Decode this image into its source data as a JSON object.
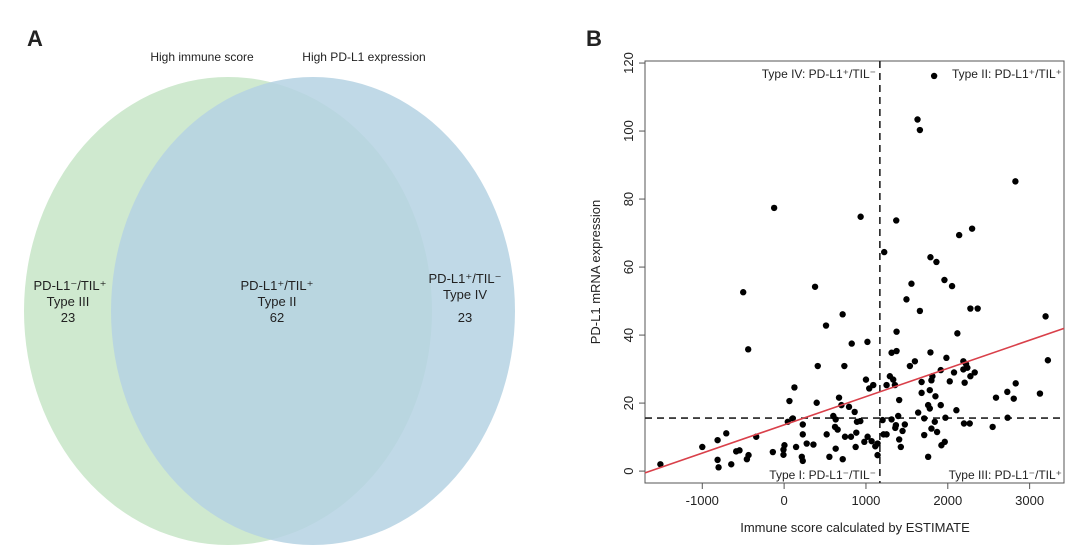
{
  "panels": {
    "a_label": "A",
    "b_label": "B"
  },
  "colors": {
    "set_a": "#cfe9cf",
    "set_b": "#b5d2e3",
    "points": "#000000",
    "fit_line": "#d9404a"
  },
  "chart_data": [
    {
      "type": "venn",
      "sets": [
        {
          "name": "High immune score"
        },
        {
          "name": "High PD-L1 expression"
        }
      ],
      "regions": [
        {
          "label": "PD-L1⁻/TIL⁺",
          "type": "Type III",
          "count": "23"
        },
        {
          "label": "PD-L1⁺/TIL⁺",
          "type": "Type II",
          "count": "62"
        },
        {
          "label": "PD-L1⁺/TIL⁻",
          "type": "Type IV",
          "count": "23"
        }
      ]
    },
    {
      "type": "scatter",
      "xlabel": "Immune score calculated by ESTIMATE",
      "ylabel": "PD-L1 mRNA expression",
      "xlim": [
        -1700,
        3420
      ],
      "ylim": [
        -3.5,
        120.6
      ],
      "xticks": [
        -1000,
        0,
        1000,
        2000,
        3000
      ],
      "yticks": [
        0,
        20,
        40,
        60,
        80,
        100,
        120
      ],
      "grid": false,
      "cutoffs": {
        "x": 1170,
        "y": 15.6
      },
      "fit_line": {
        "intercept": 13.6,
        "slope": 0.0083
      },
      "quadrant_labels": {
        "top_left": "Type IV: PD-L1⁺/TIL⁻",
        "top_right": "Type II: PD-L1⁺/TIL⁺",
        "bottom_left": "Type I: PD-L1⁻/TIL⁻",
        "bottom_right": "Type III: PD-L1⁻/TIL⁺"
      },
      "points": [
        [
          1833,
          116.2
        ],
        [
          1630,
          103.4
        ],
        [
          1659,
          100.3
        ],
        [
          2826,
          85.2
        ],
        [
          -122,
          77.4
        ],
        [
          935,
          74.8
        ],
        [
          1370,
          73.7
        ],
        [
          2297,
          71.3
        ],
        [
          2139,
          69.4
        ],
        [
          1223,
          64.4
        ],
        [
          1788,
          62.9
        ],
        [
          1861,
          61.5
        ],
        [
          1556,
          55.1
        ],
        [
          1959,
          56.2
        ],
        [
          2052,
          54.4
        ],
        [
          378,
          54.2
        ],
        [
          -500,
          52.6
        ],
        [
          1495,
          50.5
        ],
        [
          2276,
          47.8
        ],
        [
          2365,
          47.8
        ],
        [
          1659,
          47.1
        ],
        [
          3195,
          45.5
        ],
        [
          715,
          46.1
        ],
        [
          512,
          42.8
        ],
        [
          2117,
          40.5
        ],
        [
          1374,
          41.0
        ],
        [
          -439,
          35.8
        ],
        [
          826,
          37.5
        ],
        [
          1018,
          38.0
        ],
        [
          1788,
          34.9
        ],
        [
          1313,
          34.8
        ],
        [
          1374,
          35.3
        ],
        [
          1983,
          33.3
        ],
        [
          3223,
          32.6
        ],
        [
          1598,
          32.3
        ],
        [
          1537,
          30.9
        ],
        [
          411,
          30.9
        ],
        [
          736,
          30.9
        ],
        [
          2190,
          32.3
        ],
        [
          2223,
          31.5
        ],
        [
          2239,
          30.4
        ],
        [
          2190,
          29.9
        ],
        [
          1914,
          29.7
        ],
        [
          2076,
          29.0
        ],
        [
          2329,
          29.0
        ],
        [
          2276,
          27.9
        ],
        [
          1292,
          27.9
        ],
        [
          1812,
          27.9
        ],
        [
          1333,
          26.9
        ],
        [
          1000,
          26.9
        ],
        [
          1680,
          26.2
        ],
        [
          2024,
          26.4
        ],
        [
          1800,
          26.7
        ],
        [
          2206,
          26.0
        ],
        [
          2830,
          25.8
        ],
        [
          1040,
          24.3
        ],
        [
          1089,
          25.3
        ],
        [
          1354,
          25.3
        ],
        [
          1252,
          25.3
        ],
        [
          126,
          24.6
        ],
        [
          1780,
          23.8
        ],
        [
          2727,
          23.3
        ],
        [
          1680,
          23.0
        ],
        [
          3126,
          22.8
        ],
        [
          2589,
          21.6
        ],
        [
          2806,
          21.3
        ],
        [
          1849,
          22.0
        ],
        [
          1406,
          20.9
        ],
        [
          65,
          20.6
        ],
        [
          398,
          20.1
        ],
        [
          671,
          21.6
        ],
        [
          700,
          19.4
        ],
        [
          1914,
          19.4
        ],
        [
          793,
          18.9
        ],
        [
          1780,
          18.4
        ],
        [
          2105,
          17.9
        ],
        [
          862,
          17.4
        ],
        [
          1638,
          17.2
        ],
        [
          1760,
          19.4
        ],
        [
          601,
          16.2
        ],
        [
          2731,
          15.7
        ],
        [
          1971,
          15.7
        ],
        [
          1394,
          16.2
        ],
        [
          1712,
          15.5
        ],
        [
          106,
          15.5
        ],
        [
          630,
          15.2
        ],
        [
          1313,
          15.2
        ],
        [
          1203,
          15.0
        ],
        [
          45,
          14.5
        ],
        [
          890,
          14.5
        ],
        [
          931,
          14.7
        ],
        [
          1841,
          14.5
        ],
        [
          2198,
          14.0
        ],
        [
          2268,
          14.0
        ],
        [
          1475,
          13.7
        ],
        [
          1366,
          13.5
        ],
        [
          228,
          13.7
        ],
        [
          622,
          13.0
        ],
        [
          2548,
          13.0
        ],
        [
          1800,
          12.5
        ],
        [
          1358,
          12.7
        ],
        [
          1869,
          11.5
        ],
        [
          654,
          12.2
        ],
        [
          1447,
          11.8
        ],
        [
          882,
          11.3
        ],
        [
          520,
          10.8
        ],
        [
          1712,
          10.6
        ],
        [
          1252,
          10.8
        ],
        [
          -707,
          11.1
        ],
        [
          -341,
          10.1
        ],
        [
          228,
          10.8
        ],
        [
          744,
          10.1
        ],
        [
          817,
          10.1
        ],
        [
          1020,
          10.1
        ],
        [
          1215,
          10.8
        ],
        [
          -813,
          9.1
        ],
        [
          1069,
          8.8
        ],
        [
          1406,
          9.3
        ],
        [
          980,
          8.6
        ],
        [
          1963,
          8.6
        ],
        [
          276,
          8.1
        ],
        [
          358,
          7.8
        ],
        [
          1142,
          8.1
        ],
        [
          1922,
          7.6
        ],
        [
          146,
          7.1
        ],
        [
          1426,
          7.1
        ],
        [
          4,
          7.6
        ],
        [
          -8,
          6.3
        ],
        [
          -1000,
          7.1
        ],
        [
          874,
          7.1
        ],
        [
          630,
          6.6
        ],
        [
          1114,
          7.3
        ],
        [
          -586,
          5.8
        ],
        [
          -545,
          6.1
        ],
        [
          -138,
          5.6
        ],
        [
          -8,
          4.8
        ],
        [
          553,
          4.2
        ],
        [
          1142,
          4.7
        ],
        [
          1760,
          4.2
        ],
        [
          216,
          4.2
        ],
        [
          228,
          3.0
        ],
        [
          716,
          3.5
        ],
        [
          -435,
          4.7
        ],
        [
          -455,
          3.5
        ],
        [
          -813,
          3.3
        ],
        [
          -801,
          1.1
        ],
        [
          -646,
          2.0
        ],
        [
          -1512,
          2.0
        ]
      ]
    }
  ]
}
